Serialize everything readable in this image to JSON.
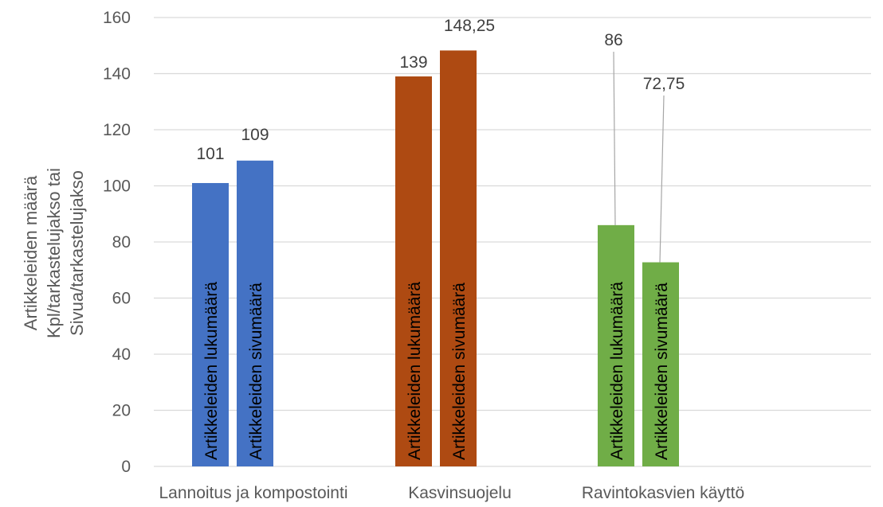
{
  "colors": {
    "background": "#ffffff",
    "gridline": "#d9d9d9",
    "leader_line": "#a6a6a6"
  },
  "chart_data": {
    "type": "bar",
    "categories": [
      "Lannoitus ja kompostointi",
      "Kasvinsuojelu",
      "Ravintokasvien käyttö"
    ],
    "category_colors": [
      "#4472c4",
      "#ae4a12",
      "#70ad47"
    ],
    "series": [
      {
        "name": "Artikkeleiden lukumäärä",
        "values": [
          101,
          139,
          86
        ]
      },
      {
        "name": "Artikkeleiden sivumäärä",
        "values": [
          109,
          148.25,
          72.75
        ]
      }
    ],
    "data_labels": [
      [
        "101",
        "139",
        "86"
      ],
      [
        "109",
        "148,25",
        "72,75"
      ]
    ],
    "ylabel_lines": [
      "Artikkeleiden  määrä",
      "Kpl/tarkastelujakso tai",
      "Sivua/tarkastelujakso"
    ],
    "ylim": [
      0,
      160
    ],
    "yticks": [
      0,
      20,
      40,
      60,
      80,
      100,
      120,
      140,
      160
    ],
    "grid": true,
    "legend": "none",
    "series_names_inside_bars": true
  }
}
